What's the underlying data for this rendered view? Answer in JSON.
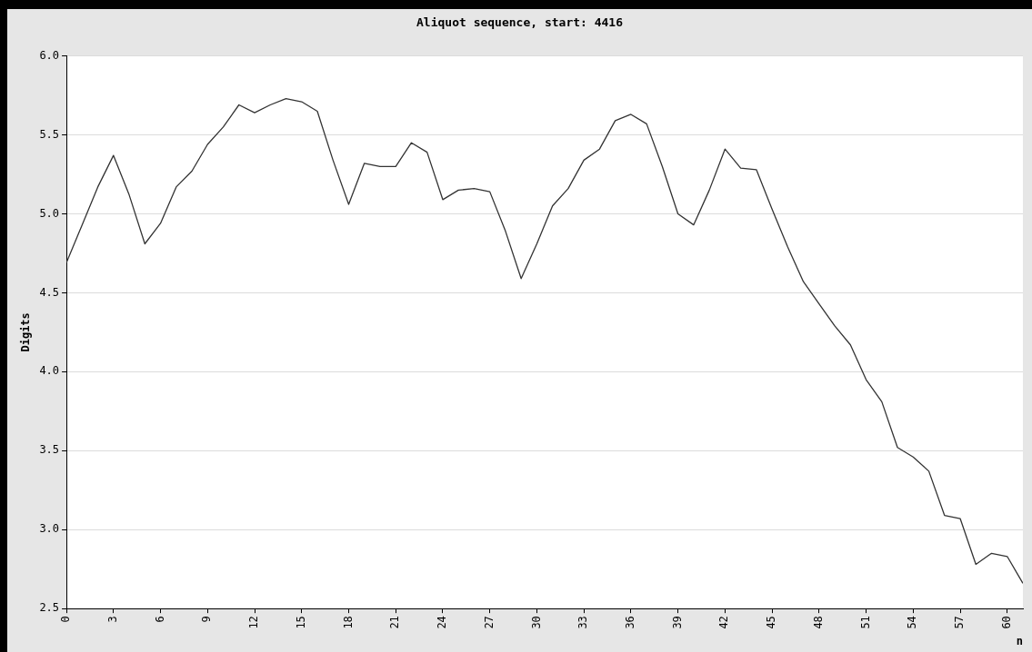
{
  "chart_data": {
    "type": "line",
    "title": "Aliquot sequence, start: 4416",
    "xlabel": "n",
    "ylabel": "Digits",
    "x": [
      0,
      1,
      2,
      3,
      4,
      5,
      6,
      7,
      8,
      9,
      10,
      11,
      12,
      13,
      14,
      15,
      16,
      17,
      18,
      19,
      20,
      21,
      22,
      23,
      24,
      25,
      26,
      27,
      28,
      29,
      30,
      31,
      32,
      33,
      34,
      35,
      36,
      37,
      38,
      39,
      40,
      41,
      42,
      43,
      44,
      45,
      46,
      47,
      48,
      49,
      50,
      51,
      52,
      53,
      54,
      55,
      56,
      57,
      58,
      59,
      60,
      61
    ],
    "series": [
      {
        "color": "#333333",
        "values": [
          4.69,
          4.93,
          5.17,
          5.37,
          5.12,
          4.81,
          4.94,
          5.17,
          5.27,
          5.44,
          5.55,
          5.69,
          5.64,
          5.69,
          5.73,
          5.71,
          5.65,
          5.34,
          5.06,
          5.32,
          5.3,
          5.3,
          5.45,
          5.39,
          5.09,
          5.15,
          5.16,
          5.14,
          4.89,
          4.59,
          4.81,
          5.05,
          5.16,
          5.34,
          5.41,
          5.59,
          5.63,
          5.57,
          5.3,
          5.0,
          4.93,
          5.15,
          5.41,
          5.29,
          5.28,
          5.03,
          4.79,
          4.57,
          4.43,
          4.29,
          4.17,
          3.95,
          3.81,
          3.52,
          3.46,
          3.37,
          3.09,
          3.07,
          2.78,
          2.85,
          2.83,
          2.66
        ]
      }
    ],
    "xlim": [
      0,
      61
    ],
    "xticks": [
      0,
      3,
      6,
      9,
      12,
      15,
      18,
      21,
      24,
      27,
      30,
      33,
      36,
      39,
      42,
      45,
      48,
      51,
      54,
      57,
      60
    ],
    "ylim": [
      2.5,
      6.0
    ],
    "yticks": [
      {
        "value": 2.5,
        "label": "2.5"
      },
      {
        "value": 3,
        "label": "3.0"
      },
      {
        "value": 3.5,
        "label": "3.5"
      },
      {
        "value": 4,
        "label": "4.0"
      },
      {
        "value": 4.5,
        "label": "4.5"
      },
      {
        "value": 5,
        "label": "5.0"
      },
      {
        "value": 5.5,
        "label": "5.5"
      },
      {
        "value": 6,
        "label": "6.0"
      }
    ],
    "grid": "y",
    "marker": "none",
    "line_style": "solid"
  }
}
